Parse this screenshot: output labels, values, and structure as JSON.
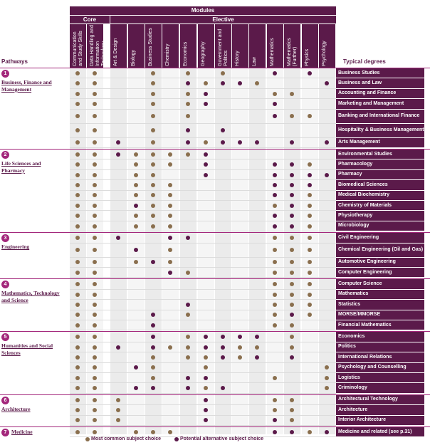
{
  "header": {
    "modules": "Modules",
    "core": "Core",
    "elective": "Elective",
    "pathways": "Pathways",
    "typical_degrees": "Typical degrees"
  },
  "subjects": [
    "Communication and Study Skills",
    "Data Handling and Information Technology",
    "Art & Design",
    "Biology",
    "Business Studies",
    "Chemistry",
    "Economics",
    "Geography",
    "Government and Politics",
    "History",
    "Law",
    "Mathematics",
    "Mathematics (Further)",
    "Physics",
    "Psychology"
  ],
  "groups": [
    {
      "num": "1",
      "name": "Business, Finance and Management"
    },
    {
      "num": "2",
      "name": "Life Sciences and Pharmacy"
    },
    {
      "num": "3",
      "name": "Engineering"
    },
    {
      "num": "4",
      "name": "Mathematics, Technology and Science"
    },
    {
      "num": "5",
      "name": "Humanities and Social Sciences"
    },
    {
      "num": "6",
      "name": "Architecture"
    },
    {
      "num": "7",
      "name": "Medicine"
    }
  ],
  "rows": [
    {
      "g": 0,
      "degree": "Business Studies",
      "cells": "GG00G0G0G00P0P0"
    },
    {
      "g": 0,
      "degree": "Business and Law",
      "cells": "GG00G0PGPPG000P"
    },
    {
      "g": 0,
      "degree": "Accounting and Finance",
      "cells": "GG00G0GP000GG00"
    },
    {
      "g": 0,
      "degree": "Marketing and Management",
      "cells": "GG00G0GP000P000"
    },
    {
      "g": 0,
      "degree": "Banking and International Finance",
      "cells": "GG00G0G0000PGG0"
    },
    {
      "g": 0,
      "degree": "Hospitality & Business Management",
      "cells": "GG00G0P0P000000"
    },
    {
      "g": 0,
      "degree": "Arts Management",
      "cells": "GGP0G0PGPPP0P0P"
    },
    {
      "g": 1,
      "degree": "Environmental Studies",
      "cells": "GGPGGGGP0000000"
    },
    {
      "g": 1,
      "degree": "Pharmacology",
      "cells": "GG0GGG0P000PPG0"
    },
    {
      "g": 1,
      "degree": "Pharmacy",
      "cells": "GG0GG00P000PPPP"
    },
    {
      "g": 1,
      "degree": "Biomedical Sciences",
      "cells": "GG0GGG00000PPP0"
    },
    {
      "g": 1,
      "degree": "Medical Biochemistry",
      "cells": "GG0GGG00000PPG0"
    },
    {
      "g": 1,
      "degree": "Chemistry of Materials",
      "cells": "GG0PGG00000GPG0"
    },
    {
      "g": 1,
      "degree": "Physiotherapy",
      "cells": "GG0GGG00000PPG0"
    },
    {
      "g": 1,
      "degree": "Microbiology",
      "cells": "GG0GGG00000PPG0"
    },
    {
      "g": 2,
      "degree": "Civil Engineering",
      "cells": "GGP00PP0000GGG0"
    },
    {
      "g": 2,
      "degree": "Chemical Engineering (Oil and Gas)",
      "cells": "GG0P0G00000GGG0"
    },
    {
      "g": 2,
      "degree": "Automotive Engineering",
      "cells": "GG0GPG00000GGG0"
    },
    {
      "g": 2,
      "degree": "Computer Engineering",
      "cells": "GG000PG0000GGG0"
    },
    {
      "g": 3,
      "degree": "Computer Science",
      "cells": "GG000000000GGG0"
    },
    {
      "g": 3,
      "degree": "Mathematics",
      "cells": "GG000000000GGG0"
    },
    {
      "g": 3,
      "degree": "Statistics",
      "cells": "GG0000P0000GGG0"
    },
    {
      "g": 3,
      "degree": "MORSE/MMORSE",
      "cells": "GG00P0G0000GPG0"
    },
    {
      "g": 3,
      "degree": "Financial Mathematics",
      "cells": "GG00P000000GG00"
    },
    {
      "g": 4,
      "degree": "Economics",
      "cells": "GG00P0GPPPP0G00"
    },
    {
      "g": 4,
      "degree": "Politics",
      "cells": "GGP0PGGPPGG0G00"
    },
    {
      "g": 4,
      "degree": "International Relations",
      "cells": "GG00G0GGPGP0P00"
    },
    {
      "g": 4,
      "degree": "Psychology and Counselling",
      "cells": "GG0PG00G000000G"
    },
    {
      "g": 4,
      "degree": "Logistics",
      "cells": "GG00G0PP000G00G"
    },
    {
      "g": 4,
      "degree": "Criminology",
      "cells": "GG0PP0PGP00000G"
    },
    {
      "g": 5,
      "degree": "Architectural Technology",
      "cells": "GGG0000P000GG00"
    },
    {
      "g": 5,
      "degree": "Architecture",
      "cells": "GGG0000P000GG00"
    },
    {
      "g": 5,
      "degree": "Interior Architecture",
      "cells": "GGG0000P000PG00"
    },
    {
      "g": 6,
      "degree": "Medicine and related (see p.31)",
      "cells": "GG0GGG00000PPGP"
    }
  ],
  "legend": {
    "common": "Most common subject choice",
    "alternative": "Potential alternative subject choice"
  },
  "colors": {
    "common": "#8a6f4e",
    "alternative": "#5b1a4a",
    "accent": "#a3277b"
  }
}
